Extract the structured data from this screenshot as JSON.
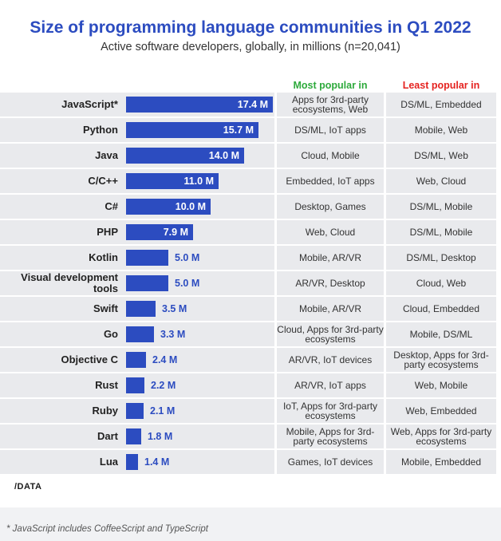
{
  "chart_data": {
    "type": "bar",
    "orientation": "horizontal",
    "title": "Size of programming language communities in Q1 2022",
    "subtitle": "Active software developers, globally, in millions (n=20,041)",
    "columns": {
      "most_popular": "Most popular in",
      "least_popular": "Least popular in"
    },
    "rows": [
      {
        "language": "JavaScript*",
        "value": 17.4,
        "label": "17.4 M",
        "most": "Apps for 3rd-party ecosystems, Web",
        "least": "DS/ML, Embedded"
      },
      {
        "language": "Python",
        "value": 15.7,
        "label": "15.7 M",
        "most": "DS/ML, IoT apps",
        "least": "Mobile, Web"
      },
      {
        "language": "Java",
        "value": 14.0,
        "label": "14.0 M",
        "most": "Cloud, Mobile",
        "least": "DS/ML, Web"
      },
      {
        "language": "C/C++",
        "value": 11.0,
        "label": "11.0 M",
        "most": "Embedded, IoT apps",
        "least": "Web, Cloud"
      },
      {
        "language": "C#",
        "value": 10.0,
        "label": "10.0 M",
        "most": "Desktop, Games",
        "least": "DS/ML, Mobile"
      },
      {
        "language": "PHP",
        "value": 7.9,
        "label": "7.9 M",
        "most": "Web, Cloud",
        "least": "DS/ML, Mobile"
      },
      {
        "language": "Kotlin",
        "value": 5.0,
        "label": "5.0 M",
        "most": "Mobile, AR/VR",
        "least": "DS/ML, Desktop"
      },
      {
        "language": "Visual development tools",
        "value": 5.0,
        "label": "5.0 M",
        "most": "AR/VR, Desktop",
        "least": "Cloud, Web"
      },
      {
        "language": "Swift",
        "value": 3.5,
        "label": "3.5 M",
        "most": "Mobile, AR/VR",
        "least": "Cloud, Embedded"
      },
      {
        "language": "Go",
        "value": 3.3,
        "label": "3.3 M",
        "most": "Cloud, Apps for 3rd-party ecosystems",
        "least": "Mobile, DS/ML"
      },
      {
        "language": "Objective C",
        "value": 2.4,
        "label": "2.4 M",
        "most": "AR/VR, IoT devices",
        "least": "Desktop, Apps for 3rd-party ecosystems"
      },
      {
        "language": "Rust",
        "value": 2.2,
        "label": "2.2 M",
        "most": "AR/VR, IoT apps",
        "least": "Web, Mobile"
      },
      {
        "language": "Ruby",
        "value": 2.1,
        "label": "2.1 M",
        "most": "IoT, Apps for 3rd-party ecosystems",
        "least": "Web, Embedded"
      },
      {
        "language": "Dart",
        "value": 1.8,
        "label": "1.8 M",
        "most": "Mobile, Apps for 3rd-party ecosystems",
        "least": "Web, Apps for 3rd-party ecosystems"
      },
      {
        "language": "Lua",
        "value": 1.4,
        "label": "1.4 M",
        "most": "Games, IoT devices",
        "least": "Mobile, Embedded"
      }
    ],
    "xlim": [
      0,
      17.4
    ],
    "grid": false,
    "legend": "none"
  },
  "colors": {
    "bar": "#2c4cc0",
    "title": "#2c4cc0",
    "most_header": "#2eaa3c",
    "least_header": "#e52320",
    "row_bg": "#e9eaed"
  },
  "logo_text": "/DATA",
  "footnote": "* JavaScript includes CoffeeScript and TypeScript"
}
